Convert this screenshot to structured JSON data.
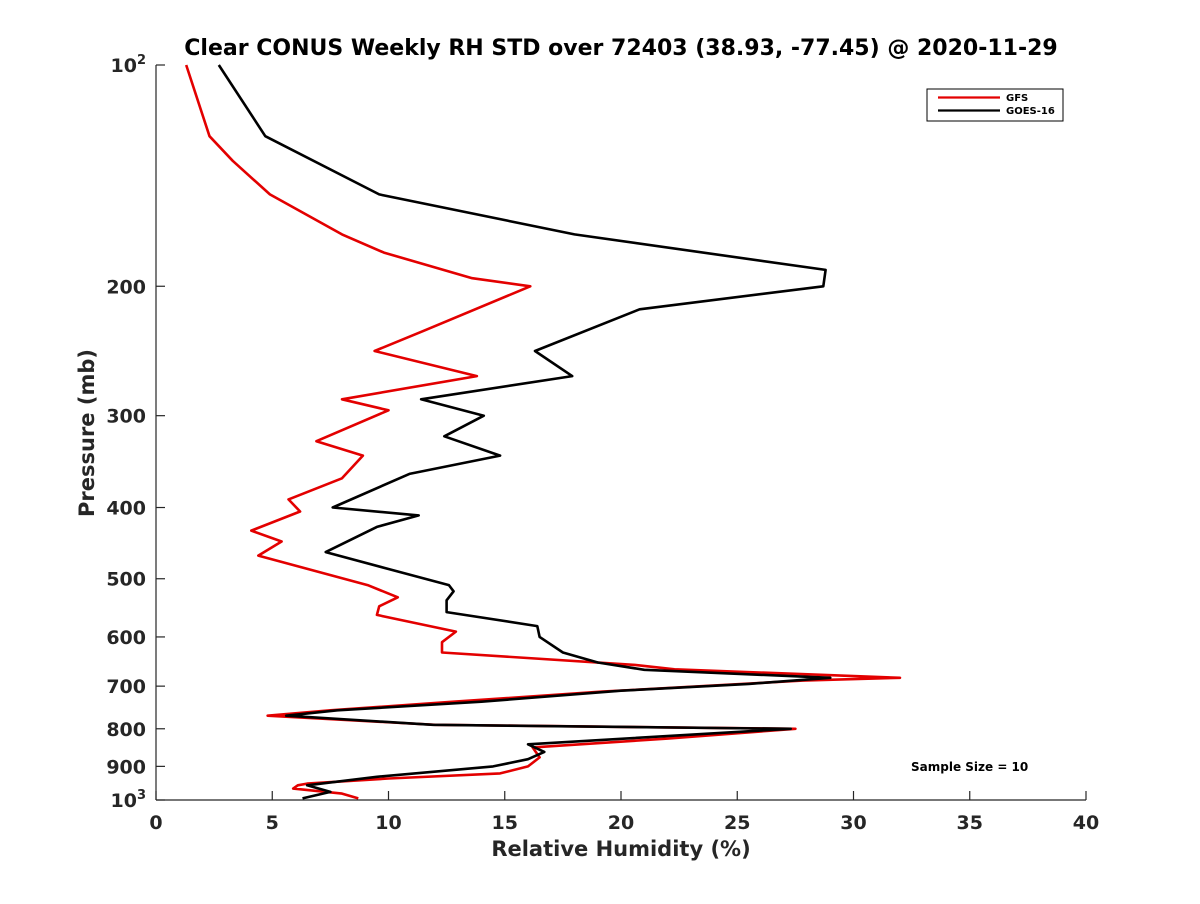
{
  "chart_data": {
    "type": "line",
    "title": "Clear CONUS Weekly RH STD over 72403 (38.93, -77.45) @ 2020-11-29",
    "xlabel": "Relative Humidity (%)",
    "ylabel": "Pressure (mb)",
    "xlim": [
      0,
      40
    ],
    "ylim": [
      100,
      1000
    ],
    "y_scale": "log",
    "y_reversed": true,
    "x_ticks": [
      0,
      5,
      10,
      15,
      20,
      25,
      30,
      35,
      40
    ],
    "x_tick_labels": [
      "0",
      "5",
      "10",
      "15",
      "20",
      "25",
      "30",
      "35",
      "40"
    ],
    "y_ticks": [
      100,
      200,
      300,
      400,
      500,
      600,
      700,
      800,
      900,
      1000
    ],
    "y_tick_labels": [
      {
        "base": "10",
        "sup": "2"
      },
      {
        "base": "200",
        "sup": ""
      },
      {
        "base": "300",
        "sup": ""
      },
      {
        "base": "400",
        "sup": ""
      },
      {
        "base": "500",
        "sup": ""
      },
      {
        "base": "600",
        "sup": ""
      },
      {
        "base": "700",
        "sup": ""
      },
      {
        "base": "800",
        "sup": ""
      },
      {
        "base": "900",
        "sup": ""
      },
      {
        "base": "10",
        "sup": "3"
      }
    ],
    "grid": false,
    "legend_position": "top-right",
    "annotation": "Sample Size = 10",
    "series": [
      {
        "name": "GFS",
        "color": "#e30000",
        "points": [
          [
            1.3,
            100
          ],
          [
            2.3,
            125
          ],
          [
            3.3,
            135
          ],
          [
            4.9,
            150
          ],
          [
            8.0,
            170
          ],
          [
            9.8,
            180
          ],
          [
            13.6,
            195
          ],
          [
            16.1,
            200
          ],
          [
            11.5,
            230
          ],
          [
            9.4,
            245
          ],
          [
            13.8,
            265
          ],
          [
            8.0,
            285
          ],
          [
            10.0,
            295
          ],
          [
            6.9,
            325
          ],
          [
            8.9,
            340
          ],
          [
            8.0,
            365
          ],
          [
            5.7,
            390
          ],
          [
            6.2,
            405
          ],
          [
            4.1,
            430
          ],
          [
            5.4,
            445
          ],
          [
            4.4,
            465
          ],
          [
            9.1,
            510
          ],
          [
            10.4,
            530
          ],
          [
            9.6,
            545
          ],
          [
            9.5,
            560
          ],
          [
            12.9,
            590
          ],
          [
            12.3,
            610
          ],
          [
            12.3,
            630
          ],
          [
            20.6,
            655
          ],
          [
            22.3,
            664
          ],
          [
            32.0,
            682
          ],
          [
            27.8,
            688
          ],
          [
            19.2,
            712
          ],
          [
            12.8,
            735
          ],
          [
            7.5,
            755
          ],
          [
            4.8,
            768
          ],
          [
            12.0,
            790
          ],
          [
            27.5,
            800
          ],
          [
            22.0,
            825
          ],
          [
            16.2,
            848
          ],
          [
            16.5,
            875
          ],
          [
            16.0,
            900
          ],
          [
            14.8,
            920
          ],
          [
            10.0,
            935
          ],
          [
            6.5,
            950
          ],
          [
            6.1,
            955
          ],
          [
            5.9,
            965
          ],
          [
            8.0,
            980
          ],
          [
            8.7,
            995
          ]
        ]
      },
      {
        "name": "GOES-16",
        "color": "#000000",
        "points": [
          [
            2.7,
            100
          ],
          [
            4.7,
            125
          ],
          [
            9.6,
            150
          ],
          [
            18.0,
            170
          ],
          [
            28.8,
            190
          ],
          [
            28.7,
            200
          ],
          [
            20.8,
            215
          ],
          [
            16.3,
            245
          ],
          [
            17.9,
            265
          ],
          [
            11.4,
            285
          ],
          [
            14.1,
            300
          ],
          [
            12.4,
            320
          ],
          [
            14.8,
            340
          ],
          [
            10.9,
            360
          ],
          [
            7.6,
            400
          ],
          [
            11.3,
            410
          ],
          [
            9.5,
            425
          ],
          [
            7.3,
            460
          ],
          [
            10.0,
            485
          ],
          [
            12.6,
            510
          ],
          [
            12.8,
            520
          ],
          [
            12.5,
            535
          ],
          [
            12.5,
            555
          ],
          [
            16.4,
            580
          ],
          [
            16.5,
            600
          ],
          [
            17.5,
            630
          ],
          [
            19.0,
            650
          ],
          [
            21.0,
            665
          ],
          [
            29.0,
            682
          ],
          [
            25.5,
            695
          ],
          [
            20.0,
            710
          ],
          [
            14.0,
            735
          ],
          [
            7.8,
            755
          ],
          [
            5.6,
            768
          ],
          [
            11.9,
            790
          ],
          [
            27.3,
            800
          ],
          [
            16.0,
            840
          ],
          [
            16.7,
            860
          ],
          [
            16.0,
            880
          ],
          [
            14.5,
            900
          ],
          [
            9.5,
            930
          ],
          [
            6.5,
            955
          ],
          [
            7.5,
            975
          ],
          [
            6.3,
            995
          ]
        ]
      }
    ]
  }
}
